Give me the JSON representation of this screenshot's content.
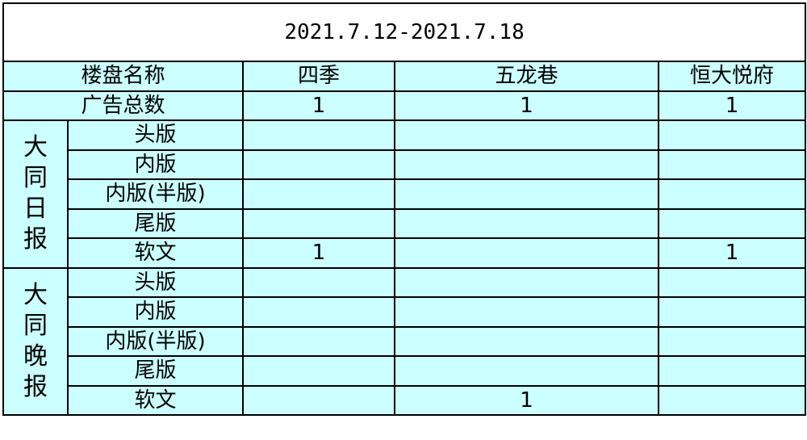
{
  "title": "2021.7.12-2021.7.18",
  "header": {
    "name_label": "楼盘名称",
    "columns": [
      "四季",
      "五龙巷",
      "恒大悦府"
    ]
  },
  "total_row": {
    "label": "广告总数",
    "values": [
      "1",
      "1",
      "1"
    ]
  },
  "groups": [
    {
      "name_chars": [
        "大",
        "同",
        "日",
        "报"
      ],
      "rows": [
        {
          "label": "头版",
          "values": [
            "",
            "",
            ""
          ]
        },
        {
          "label": "内版",
          "values": [
            "",
            "",
            ""
          ]
        },
        {
          "label": "内版(半版)",
          "values": [
            "",
            "",
            ""
          ]
        },
        {
          "label": "尾版",
          "values": [
            "",
            "",
            ""
          ]
        },
        {
          "label": "软文",
          "values": [
            "1",
            "",
            "1"
          ]
        }
      ]
    },
    {
      "name_chars": [
        "大",
        "同",
        "晚",
        "报"
      ],
      "rows": [
        {
          "label": "头版",
          "values": [
            "",
            "",
            ""
          ]
        },
        {
          "label": "内版",
          "values": [
            "",
            "",
            ""
          ]
        },
        {
          "label": "内版(半版)",
          "values": [
            "",
            "",
            ""
          ]
        },
        {
          "label": "尾版",
          "values": [
            "",
            "",
            ""
          ]
        },
        {
          "label": "软文",
          "values": [
            "",
            "1",
            ""
          ]
        }
      ]
    }
  ],
  "colors": {
    "cell_bg": "#ccffff",
    "border": "#000000"
  }
}
